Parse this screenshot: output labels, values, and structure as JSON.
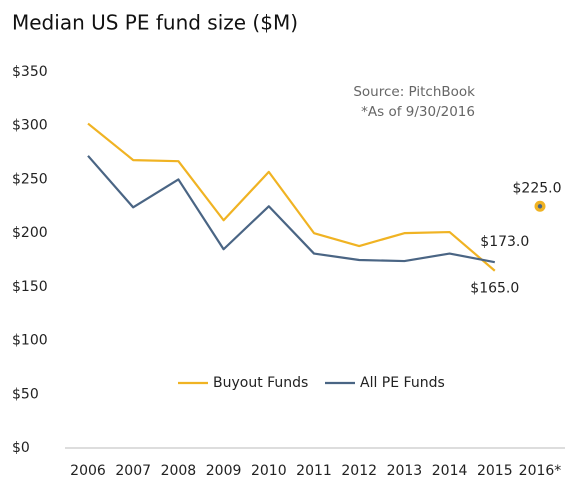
{
  "chart_data": {
    "type": "line",
    "title": "Median US PE fund size ($M)",
    "annotations": [
      "Source: PitchBook",
      "*As of 9/30/2016"
    ],
    "categories": [
      "2006",
      "2007",
      "2008",
      "2009",
      "2010",
      "2011",
      "2012",
      "2013",
      "2014",
      "2015",
      "2016*"
    ],
    "series": [
      {
        "name": "Buyout Funds",
        "color": "#f0b323",
        "values": [
          302,
          268,
          267,
          212,
          257,
          200,
          188,
          200,
          201,
          165,
          null
        ],
        "value_labels": [
          null,
          null,
          null,
          null,
          null,
          null,
          null,
          null,
          null,
          "$165.0",
          null
        ]
      },
      {
        "name": "All PE Funds",
        "color": "#4a6584",
        "values": [
          272,
          224,
          250,
          185,
          225,
          181,
          175,
          174,
          181,
          173,
          null
        ],
        "value_labels": [
          null,
          null,
          null,
          null,
          null,
          null,
          null,
          null,
          null,
          "$173.0",
          null
        ]
      }
    ],
    "highlight": {
      "value": 225,
      "label": "$225.0"
    },
    "ylim": [
      0,
      350
    ],
    "yticks": [
      {
        "value": 0,
        "label": "$0"
      },
      {
        "value": 50,
        "label": "$50"
      },
      {
        "value": 100,
        "label": "$100"
      },
      {
        "value": 150,
        "label": "$150"
      },
      {
        "value": 200,
        "label": "$200"
      },
      {
        "value": 250,
        "label": "$250"
      },
      {
        "value": 300,
        "label": "$300"
      },
      {
        "value": 350,
        "label": "$350"
      }
    ],
    "grid": false,
    "legend": "bottom"
  }
}
